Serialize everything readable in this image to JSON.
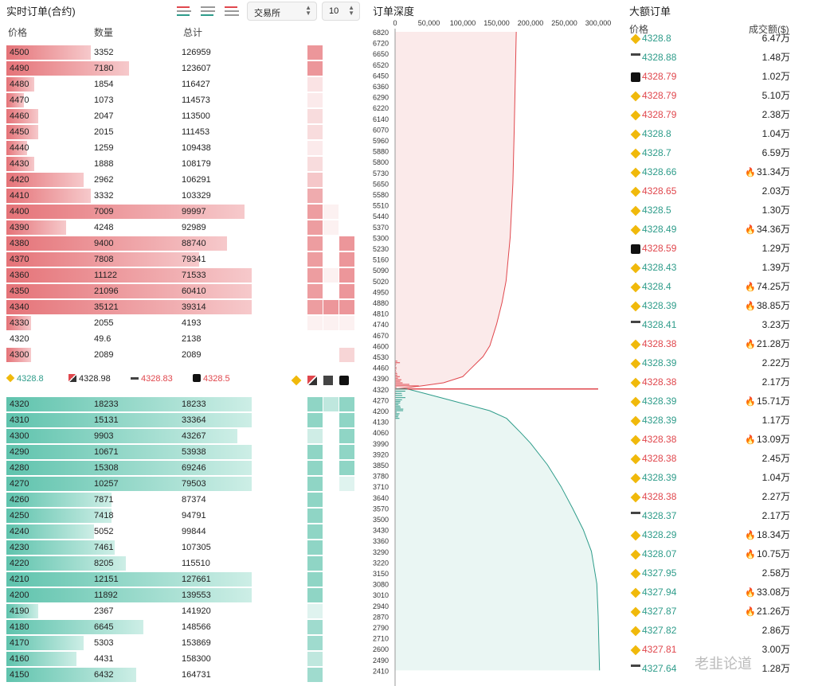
{
  "orderbook": {
    "title": "实时订单(合约)",
    "exchange_label": "交易所",
    "depth_value": "10",
    "headers": {
      "price": "价格",
      "qty": "数量",
      "total": "总计"
    },
    "asks": [
      {
        "p": "4500",
        "q": "3352",
        "t": "126959",
        "w": 0.24,
        "e": [
          0,
          0.75,
          0,
          0
        ]
      },
      {
        "p": "4490",
        "q": "7180",
        "t": "123607",
        "w": 0.35,
        "e": [
          0,
          0.75,
          0,
          0
        ]
      },
      {
        "p": "4480",
        "q": "1854",
        "t": "116427",
        "w": 0.08,
        "e": [
          0,
          0.2,
          0,
          0
        ]
      },
      {
        "p": "4470",
        "q": "1073",
        "t": "114573",
        "w": 0.05,
        "e": [
          0,
          0.15,
          0,
          0
        ]
      },
      {
        "p": "4460",
        "q": "2047",
        "t": "113500",
        "w": 0.09,
        "e": [
          0,
          0.25,
          0,
          0
        ]
      },
      {
        "p": "4450",
        "q": "2015",
        "t": "111453",
        "w": 0.09,
        "e": [
          0,
          0.25,
          0,
          0
        ]
      },
      {
        "p": "4440",
        "q": "1259",
        "t": "109438",
        "w": 0.06,
        "e": [
          0,
          0.15,
          0,
          0
        ]
      },
      {
        "p": "4430",
        "q": "1888",
        "t": "108179",
        "w": 0.08,
        "e": [
          0,
          0.25,
          0,
          0
        ]
      },
      {
        "p": "4420",
        "q": "2962",
        "t": "106291",
        "w": 0.22,
        "e": [
          0,
          0.4,
          0,
          0
        ]
      },
      {
        "p": "4410",
        "q": "3332",
        "t": "103329",
        "w": 0.24,
        "e": [
          0,
          0.6,
          0,
          0
        ]
      },
      {
        "p": "4400",
        "q": "7009",
        "t": "99997",
        "w": 0.68,
        "e": [
          0,
          0.7,
          0.1,
          0
        ]
      },
      {
        "p": "4390",
        "q": "4248",
        "t": "92989",
        "w": 0.17,
        "e": [
          0,
          0.7,
          0.1,
          0
        ]
      },
      {
        "p": "4380",
        "q": "9400",
        "t": "88740",
        "w": 0.63,
        "e": [
          0,
          0.7,
          0,
          0.75
        ]
      },
      {
        "p": "4370",
        "q": "7808",
        "t": "79341",
        "w": 0.55,
        "e": [
          0,
          0.7,
          0,
          0.75
        ]
      },
      {
        "p": "4360",
        "q": "11122",
        "t": "71533",
        "w": 0.7,
        "e": [
          0,
          0.7,
          0.1,
          0.75
        ]
      },
      {
        "p": "4350",
        "q": "21096",
        "t": "60410",
        "w": 0.7,
        "e": [
          0,
          0.7,
          0,
          0.75
        ]
      },
      {
        "p": "4340",
        "q": "35121",
        "t": "39314",
        "w": 0.7,
        "e": [
          0,
          0.7,
          0.75,
          0.75
        ]
      },
      {
        "p": "4330",
        "q": "2055",
        "t": "4193",
        "w": 0.07,
        "e": [
          0,
          0.1,
          0.1,
          0.1
        ]
      },
      {
        "p": "4320",
        "q": "49.6",
        "t": "2138",
        "w": 0.0,
        "e": [
          0,
          0,
          0,
          0
        ]
      },
      {
        "p": "4300",
        "q": "2089",
        "t": "2089",
        "w": 0.07,
        "e": [
          0,
          0,
          0,
          0.3
        ]
      }
    ],
    "mid": [
      {
        "price": "4328.8",
        "color": "#2e9c8a",
        "icon": "binance-icon"
      },
      {
        "price": "4328.98",
        "color": "#222",
        "icon": "okx-icon"
      },
      {
        "price": "4328.83",
        "color": "#e0474d",
        "icon": "bybit-icon"
      },
      {
        "price": "4328.5",
        "color": "#e0474d",
        "icon": "okx-black-icon"
      }
    ],
    "bids": [
      {
        "p": "4320",
        "q": "18233",
        "t": "18233",
        "w": 0.7,
        "e": [
          0,
          0.7,
          0.4,
          0.7
        ]
      },
      {
        "p": "4310",
        "q": "15131",
        "t": "33364",
        "w": 0.7,
        "e": [
          0,
          0.7,
          0,
          0.7
        ]
      },
      {
        "p": "4300",
        "q": "9903",
        "t": "43267",
        "w": 0.66,
        "e": [
          0,
          0.3,
          0,
          0.7
        ]
      },
      {
        "p": "4290",
        "q": "10671",
        "t": "53938",
        "w": 0.7,
        "e": [
          0,
          0.7,
          0,
          0.7
        ]
      },
      {
        "p": "4280",
        "q": "15308",
        "t": "69246",
        "w": 0.7,
        "e": [
          0,
          0.7,
          0,
          0.7
        ]
      },
      {
        "p": "4270",
        "q": "10257",
        "t": "79503",
        "w": 0.7,
        "e": [
          0,
          0.7,
          0,
          0.2
        ]
      },
      {
        "p": "4260",
        "q": "7871",
        "t": "87374",
        "w": 0.3,
        "e": [
          0,
          0.7,
          0,
          0
        ]
      },
      {
        "p": "4250",
        "q": "7418",
        "t": "94791",
        "w": 0.3,
        "e": [
          0,
          0.7,
          0,
          0
        ]
      },
      {
        "p": "4240",
        "q": "5052",
        "t": "99844",
        "w": 0.25,
        "e": [
          0,
          0.7,
          0,
          0
        ]
      },
      {
        "p": "4230",
        "q": "7461",
        "t": "107305",
        "w": 0.31,
        "e": [
          0,
          0.7,
          0,
          0
        ]
      },
      {
        "p": "4220",
        "q": "8205",
        "t": "115510",
        "w": 0.34,
        "e": [
          0,
          0.7,
          0,
          0
        ]
      },
      {
        "p": "4210",
        "q": "12151",
        "t": "127661",
        "w": 0.7,
        "e": [
          0,
          0.7,
          0,
          0
        ]
      },
      {
        "p": "4200",
        "q": "11892",
        "t": "139553",
        "w": 0.7,
        "e": [
          0,
          0.7,
          0,
          0
        ]
      },
      {
        "p": "4190",
        "q": "2367",
        "t": "141920",
        "w": 0.09,
        "e": [
          0,
          0.2,
          0,
          0
        ]
      },
      {
        "p": "4180",
        "q": "6645",
        "t": "148566",
        "w": 0.39,
        "e": [
          0,
          0.6,
          0,
          0
        ]
      },
      {
        "p": "4170",
        "q": "5303",
        "t": "153869",
        "w": 0.22,
        "e": [
          0,
          0.6,
          0,
          0
        ]
      },
      {
        "p": "4160",
        "q": "4431",
        "t": "158300",
        "w": 0.2,
        "e": [
          0,
          0.4,
          0,
          0
        ]
      },
      {
        "p": "4150",
        "q": "6432",
        "t": "164731",
        "w": 0.37,
        "e": [
          0,
          0.6,
          0,
          0
        ]
      }
    ]
  },
  "depth": {
    "title": "订单深度",
    "x_ticks": [
      "0",
      "50,000",
      "100,000",
      "150,000",
      "200,000",
      "250,000",
      "300,000"
    ],
    "y_ticks": [
      "6820",
      "6720",
      "6650",
      "6520",
      "6450",
      "6360",
      "6290",
      "6220",
      "6140",
      "6070",
      "5960",
      "5880",
      "5800",
      "5730",
      "5650",
      "5580",
      "5510",
      "5440",
      "5370",
      "5300",
      "5230",
      "5160",
      "5090",
      "5020",
      "4950",
      "4880",
      "4810",
      "4740",
      "4670",
      "4600",
      "4530",
      "4460",
      "4390",
      "4320",
      "4270",
      "4200",
      "4130",
      "4060",
      "3990",
      "3920",
      "3850",
      "3780",
      "3710",
      "3640",
      "3570",
      "3500",
      "3430",
      "3360",
      "3290",
      "3220",
      "3150",
      "3080",
      "3010",
      "2940",
      "2870",
      "2790",
      "2710",
      "2600",
      "2490",
      "2410"
    ],
    "mid_price": 4320,
    "ask_cum": [
      [
        4320,
        2138
      ],
      [
        4340,
        39314
      ],
      [
        4360,
        71533
      ],
      [
        4400,
        99997
      ],
      [
        4450,
        111453
      ],
      [
        4530,
        130000
      ],
      [
        4600,
        140000
      ],
      [
        4740,
        150000
      ],
      [
        4880,
        158000
      ],
      [
        5020,
        164000
      ],
      [
        5300,
        170000
      ],
      [
        5650,
        174000
      ],
      [
        6070,
        176000
      ],
      [
        6520,
        178000
      ],
      [
        6820,
        179000
      ]
    ],
    "bid_cum": [
      [
        4320,
        18233
      ],
      [
        4300,
        43267
      ],
      [
        4270,
        79503
      ],
      [
        4200,
        139553
      ],
      [
        4150,
        164731
      ],
      [
        4060,
        185000
      ],
      [
        3990,
        200000
      ],
      [
        3850,
        225000
      ],
      [
        3710,
        245000
      ],
      [
        3570,
        262000
      ],
      [
        3430,
        278000
      ],
      [
        3290,
        290000
      ],
      [
        3080,
        298000
      ],
      [
        2870,
        300000
      ],
      [
        2410,
        302000
      ]
    ]
  },
  "big_orders": {
    "title": "大额订单",
    "price_header": "价格",
    "amount_header": "成交额($)",
    "rows": [
      {
        "icon": "binance-icon",
        "price": "4328.8",
        "side": "up",
        "amount": "6.47万",
        "fire": false
      },
      {
        "icon": "bybit-icon",
        "price": "4328.88",
        "side": "up",
        "amount": "1.48万",
        "fire": false
      },
      {
        "icon": "okx-black-icon",
        "price": "4328.79",
        "side": "dn",
        "amount": "1.02万",
        "fire": false
      },
      {
        "icon": "binance-icon",
        "price": "4328.79",
        "side": "dn",
        "amount": "5.10万",
        "fire": false
      },
      {
        "icon": "binance-icon",
        "price": "4328.79",
        "side": "dn",
        "amount": "2.38万",
        "fire": false
      },
      {
        "icon": "binance-icon",
        "price": "4328.8",
        "side": "up",
        "amount": "1.04万",
        "fire": false
      },
      {
        "icon": "binance-icon",
        "price": "4328.7",
        "side": "up",
        "amount": "6.59万",
        "fire": false
      },
      {
        "icon": "binance-icon",
        "price": "4328.66",
        "side": "up",
        "amount": "31.34万",
        "fire": true
      },
      {
        "icon": "binance-icon",
        "price": "4328.65",
        "side": "dn",
        "amount": "2.03万",
        "fire": false
      },
      {
        "icon": "binance-icon",
        "price": "4328.5",
        "side": "up",
        "amount": "1.30万",
        "fire": false
      },
      {
        "icon": "binance-icon",
        "price": "4328.49",
        "side": "up",
        "amount": "34.36万",
        "fire": true
      },
      {
        "icon": "okx-black-icon",
        "price": "4328.59",
        "side": "dn",
        "amount": "1.29万",
        "fire": false
      },
      {
        "icon": "binance-icon",
        "price": "4328.43",
        "side": "up",
        "amount": "1.39万",
        "fire": false
      },
      {
        "icon": "binance-icon",
        "price": "4328.4",
        "side": "up",
        "amount": "74.25万",
        "fire": true
      },
      {
        "icon": "binance-icon",
        "price": "4328.39",
        "side": "up",
        "amount": "38.85万",
        "fire": true
      },
      {
        "icon": "bybit-icon",
        "price": "4328.41",
        "side": "up",
        "amount": "3.23万",
        "fire": false
      },
      {
        "icon": "binance-icon",
        "price": "4328.38",
        "side": "dn",
        "amount": "21.28万",
        "fire": true
      },
      {
        "icon": "binance-icon",
        "price": "4328.39",
        "side": "up",
        "amount": "2.22万",
        "fire": false
      },
      {
        "icon": "binance-icon",
        "price": "4328.38",
        "side": "dn",
        "amount": "2.17万",
        "fire": false
      },
      {
        "icon": "binance-icon",
        "price": "4328.39",
        "side": "up",
        "amount": "15.71万",
        "fire": true
      },
      {
        "icon": "binance-icon",
        "price": "4328.39",
        "side": "up",
        "amount": "1.17万",
        "fire": false
      },
      {
        "icon": "binance-icon",
        "price": "4328.38",
        "side": "dn",
        "amount": "13.09万",
        "fire": true
      },
      {
        "icon": "binance-icon",
        "price": "4328.38",
        "side": "dn",
        "amount": "2.45万",
        "fire": false
      },
      {
        "icon": "binance-icon",
        "price": "4328.39",
        "side": "up",
        "amount": "1.04万",
        "fire": false
      },
      {
        "icon": "binance-icon",
        "price": "4328.38",
        "side": "dn",
        "amount": "2.27万",
        "fire": false
      },
      {
        "icon": "bybit-icon",
        "price": "4328.37",
        "side": "up",
        "amount": "2.17万",
        "fire": false
      },
      {
        "icon": "binance-icon",
        "price": "4328.29",
        "side": "up",
        "amount": "18.34万",
        "fire": true
      },
      {
        "icon": "binance-icon",
        "price": "4328.07",
        "side": "up",
        "amount": "10.75万",
        "fire": true
      },
      {
        "icon": "binance-icon",
        "price": "4327.95",
        "side": "up",
        "amount": "2.58万",
        "fire": false
      },
      {
        "icon": "binance-icon",
        "price": "4327.94",
        "side": "up",
        "amount": "33.08万",
        "fire": true
      },
      {
        "icon": "binance-icon",
        "price": "4327.87",
        "side": "up",
        "amount": "21.26万",
        "fire": true
      },
      {
        "icon": "binance-icon",
        "price": "4327.82",
        "side": "up",
        "amount": "2.86万",
        "fire": false
      },
      {
        "icon": "binance-icon",
        "price": "4327.81",
        "side": "dn",
        "amount": "3.00万",
        "fire": false
      },
      {
        "icon": "bybit-icon",
        "price": "4327.64",
        "side": "up",
        "amount": "1.28万",
        "fire": false
      }
    ]
  },
  "colors": {
    "ask": "#e0474d",
    "bid": "#2e9c8a",
    "binance": "#f0b90b"
  },
  "watermark": "老韭论道"
}
